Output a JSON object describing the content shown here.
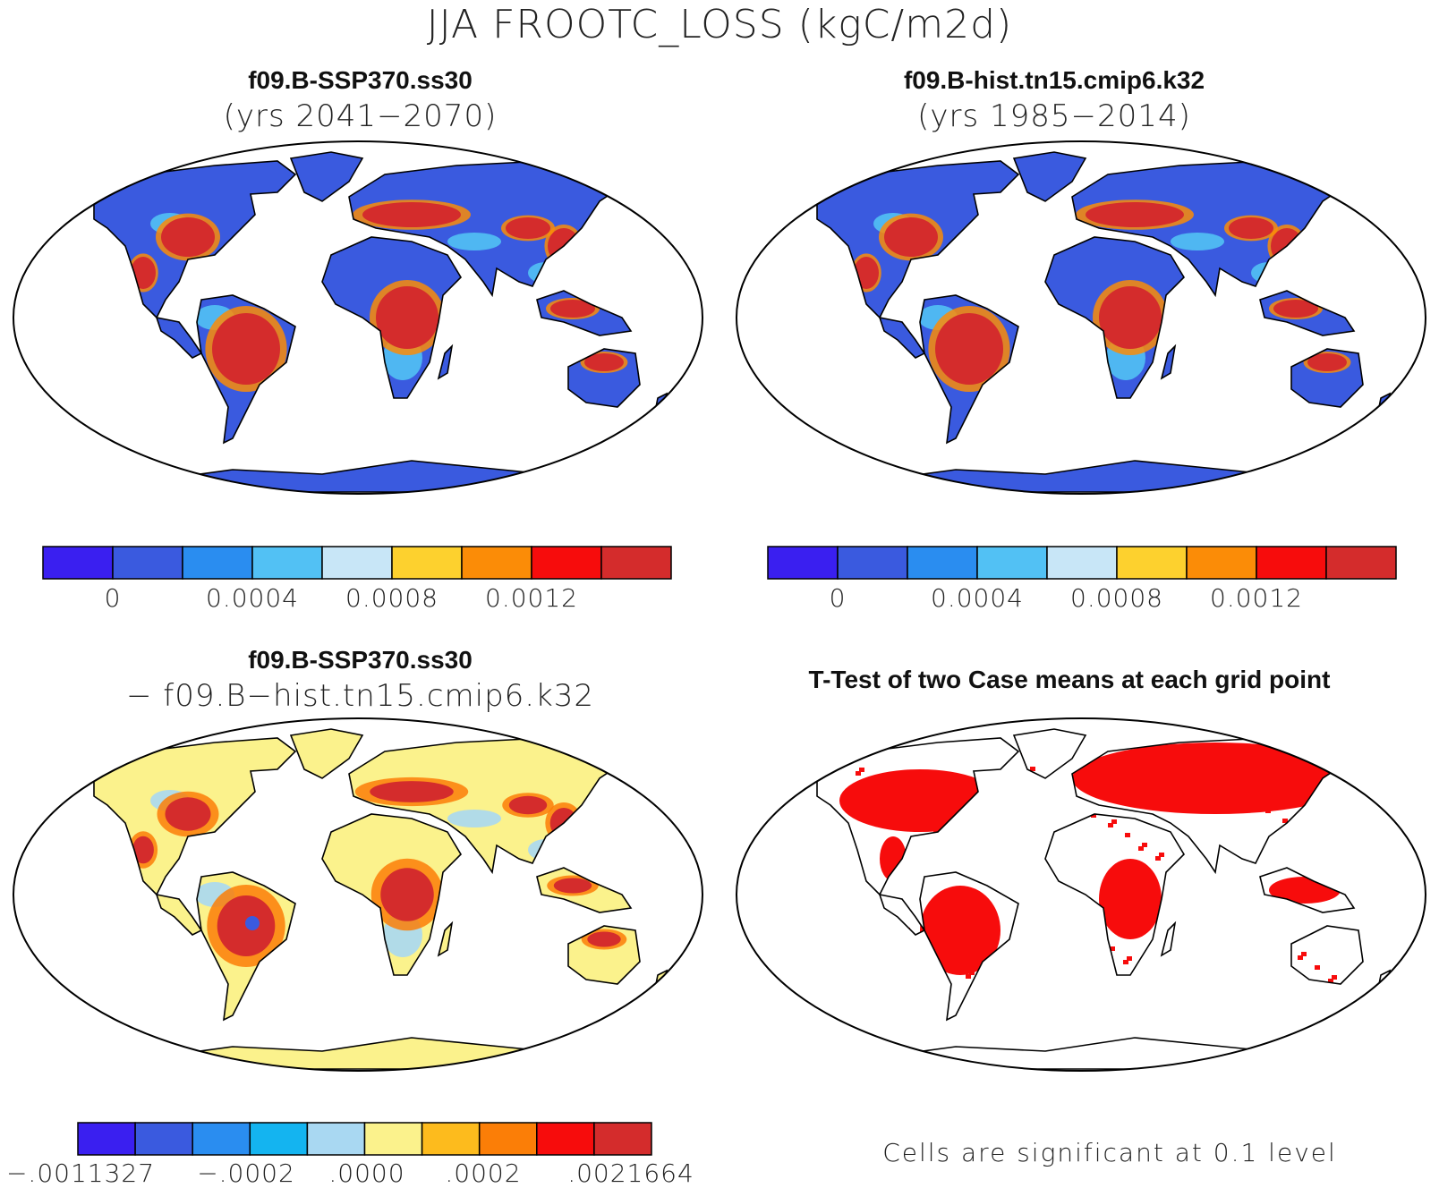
{
  "figure_title": "JJA FROOTC_LOSS (kgC/m2d)",
  "panels": [
    {
      "id": "ssp370",
      "title": "f09.B-SSP370.ss30",
      "subtitle": "(yrs 2041−2070)",
      "colorbar": {
        "colors": [
          "#3a1ff0",
          "#3a5adf",
          "#2a8df0",
          "#52c1f4",
          "#c8e6f7",
          "#fdd12e",
          "#fb8c07",
          "#f70c0c",
          "#d42c2c"
        ],
        "tick_labels": [
          "0",
          "0.0004",
          "0.0008",
          "0.0012"
        ]
      }
    },
    {
      "id": "hist",
      "title": "f09.B-hist.tn15.cmip6.k32",
      "subtitle": "(yrs 1985−2014)",
      "colorbar": {
        "colors": [
          "#3a1ff0",
          "#3a5adf",
          "#2a8df0",
          "#52c1f4",
          "#c8e6f7",
          "#fdd12e",
          "#fb8c07",
          "#f70c0c",
          "#d42c2c"
        ],
        "tick_labels": [
          "0",
          "0.0004",
          "0.0008",
          "0.0012"
        ]
      }
    },
    {
      "id": "diff",
      "title": "f09.B-SSP370.ss30",
      "subtitle": "− f09.B−hist.tn15.cmip6.k32",
      "colorbar": {
        "colors": [
          "#3a1ff0",
          "#3a5adf",
          "#2a8df0",
          "#14b4f0",
          "#a9d8f2",
          "#fbf28c",
          "#fdbb1d",
          "#fb7e07",
          "#f70c0c",
          "#d42c2c"
        ],
        "tick_labels": [
          "−.0011327",
          "−.0002",
          ".0000",
          ".0002",
          ".0021664"
        ]
      }
    },
    {
      "id": "ttest",
      "title": "T-Test of two Case means at each grid point",
      "note": "Cells are significant at 0.1 level",
      "fill_color": "#f70c0c"
    }
  ],
  "map_colors": {
    "ocean": "#ffffff",
    "coast": "#000000",
    "land_low": "#3a5adf",
    "land_diff": "#fbf28c",
    "land_ttest": "#ffffff"
  }
}
